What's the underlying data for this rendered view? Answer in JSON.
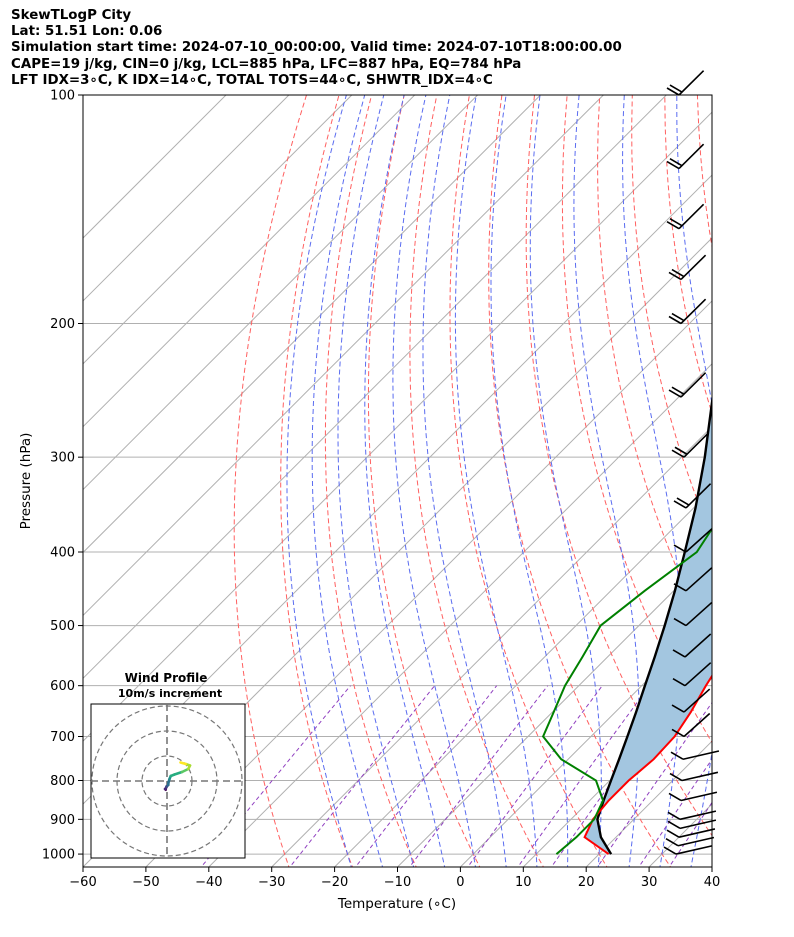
{
  "header": {
    "line1": "SkewTLogP City",
    "line2": "Lat: 51.51   Lon: 0.06",
    "line3": "Simulation start time: 2024-07-10_00:00:00, Valid time: 2024-07-10T18:00:00.00",
    "line4": "CAPE=19 j/kg, CIN=0 j/kg, LCL=885 hPa, LFC=887 hPa, EQ=784 hPa",
    "line5": "LFT IDX=3∘C, K IDX=14∘C, TOTAL TOTS=44∘C, SHWTR_IDX=4∘C"
  },
  "colors": {
    "temperature": "#ff0000",
    "dewpoint": "#008000",
    "parcel": "#000000",
    "cape_fill": "#a3c6e0",
    "dry_adiabat": "#ff6060",
    "moist_adiabat": "#5a6cf0",
    "mixing_ratio": "#9040c0",
    "isotherm": "#b0b0b0",
    "isobar": "#b0b0b0"
  },
  "chart_data": [
    {
      "type": "line",
      "name": "skew-t-log-p",
      "xlabel": "Temperature (∘C)",
      "ylabel": "Pressure (hPa)",
      "xlim": [
        -60,
        40
      ],
      "ylim": [
        1040,
        100
      ],
      "y_scale": "log",
      "skew": "isotherms at 45 degrees",
      "grid": true,
      "x_ticks": [
        -60,
        -50,
        -40,
        -30,
        -20,
        -10,
        0,
        10,
        20,
        30,
        40
      ],
      "y_ticks": [
        100,
        200,
        300,
        400,
        500,
        600,
        700,
        800,
        900,
        1000
      ],
      "series": [
        {
          "role": "temperature",
          "points": [
            [
              21.5,
              1000
            ],
            [
              15,
              950
            ],
            [
              13.5,
              900
            ],
            [
              13,
              850
            ],
            [
              13,
              800
            ],
            [
              13.6,
              750
            ],
            [
              13.3,
              700
            ],
            [
              12,
              650
            ],
            [
              10.2,
              600
            ],
            [
              8.5,
              550
            ],
            [
              6.6,
              500
            ],
            [
              4.4,
              450
            ],
            [
              2.6,
              400
            ],
            [
              -0.5,
              350
            ],
            [
              -4.1,
              300
            ],
            [
              -7.8,
              270
            ],
            [
              -8.2,
              260
            ],
            [
              -9,
              245
            ],
            [
              -10.2,
              230
            ],
            [
              -12.3,
              215
            ],
            [
              -14.6,
              200
            ],
            [
              -17.8,
              190
            ],
            [
              -19.6,
              180
            ],
            [
              -21.7,
              170
            ],
            [
              -23.8,
              160
            ],
            [
              -25.4,
              150
            ],
            [
              -27.8,
              140
            ],
            [
              -31,
              130
            ],
            [
              -34.4,
              120
            ],
            [
              -38.9,
              110
            ],
            [
              -43.2,
              100
            ]
          ]
        },
        {
          "role": "dewpoint",
          "points": [
            [
              13.2,
              1000
            ],
            [
              13.7,
              950
            ],
            [
              13.7,
              900
            ],
            [
              12.1,
              850
            ],
            [
              7.8,
              800
            ],
            [
              -1.1,
              750
            ],
            [
              -7.6,
              700
            ],
            [
              -9.8,
              650
            ],
            [
              -12.2,
              600
            ],
            [
              -14,
              550
            ],
            [
              -16.1,
              500
            ],
            [
              -14.6,
              450
            ],
            [
              -12.5,
              400
            ],
            [
              -14.9,
              350
            ],
            [
              -17.8,
              300
            ],
            [
              -20.8,
              270
            ],
            [
              -21.4,
              260
            ],
            [
              -21.9,
              245
            ],
            [
              -23.1,
              230
            ],
            [
              -23.8,
              210
            ],
            [
              -25.7,
              200
            ],
            [
              -30.7,
              180
            ],
            [
              -34.1,
              170
            ],
            [
              -38,
              160
            ],
            [
              -41.1,
              150
            ],
            [
              -45.2,
              140
            ],
            [
              -49.6,
              130
            ],
            [
              -55,
              120
            ],
            [
              -60.8,
              110
            ],
            [
              -67,
              100
            ]
          ]
        },
        {
          "role": "parcel",
          "points": [
            [
              21.9,
              1000
            ],
            [
              17.6,
              950
            ],
            [
              14.2,
              900
            ],
            [
              12.2,
              850
            ],
            [
              10.2,
              800
            ],
            [
              8.1,
              750
            ],
            [
              5.8,
              700
            ],
            [
              3.3,
              650
            ],
            [
              0.5,
              600
            ],
            [
              -2.5,
              550
            ],
            [
              -5.9,
              500
            ],
            [
              -9.8,
              450
            ],
            [
              -14.4,
              400
            ],
            [
              -19.7,
              350
            ],
            [
              -26.3,
              300
            ],
            [
              -34.6,
              250
            ],
            [
              -45.2,
              200
            ],
            [
              -52.1,
              175
            ],
            [
              -57.8,
              155
            ],
            [
              -61.3,
              145
            ],
            [
              -64.3,
              135
            ],
            [
              -68,
              125
            ],
            [
              -72.1,
              115
            ],
            [
              -76.5,
              105
            ],
            [
              -79,
              100
            ]
          ]
        }
      ],
      "wind_barbs": {
        "pressures": [
          1000,
          975,
          950,
          925,
          900,
          850,
          800,
          750,
          700,
          650,
          600,
          550,
          500,
          450,
          400,
          350,
          300,
          250,
          200,
          175,
          150,
          125,
          100
        ],
        "barbs": [
          "10 kt",
          "10 kt",
          "10 kt",
          "10 kt",
          "10 kt",
          "10 kt",
          "10 kt",
          "10 kt",
          "10 kt",
          "10 kt",
          "10 kt",
          "10 kt",
          "10 kt",
          "10 kt",
          "10 kt",
          "20 kt",
          "20 kt",
          "20 kt",
          "20 kt",
          "20 kt",
          "20 kt",
          "20 kt",
          "20 kt"
        ]
      }
    },
    {
      "type": "scatter",
      "name": "hodograph",
      "title": "Wind Profile",
      "subtitle": "10m/s increment",
      "rings": [
        10,
        20,
        30
      ],
      "color_map": "viridis",
      "points": [
        [
          -0.5,
          -3.5
        ],
        [
          -0.8,
          -3.2
        ],
        [
          -0.4,
          -2.8
        ],
        [
          -0.2,
          -2.2
        ],
        [
          0.5,
          -1.6
        ],
        [
          0.6,
          -0.5
        ],
        [
          1,
          0.8
        ],
        [
          1.5,
          2
        ],
        [
          3,
          2.6
        ],
        [
          6,
          3.6
        ],
        [
          8.5,
          4.8
        ],
        [
          9.2,
          6.2
        ],
        [
          7.5,
          6.8
        ],
        [
          5.4,
          7.4
        ]
      ]
    }
  ]
}
